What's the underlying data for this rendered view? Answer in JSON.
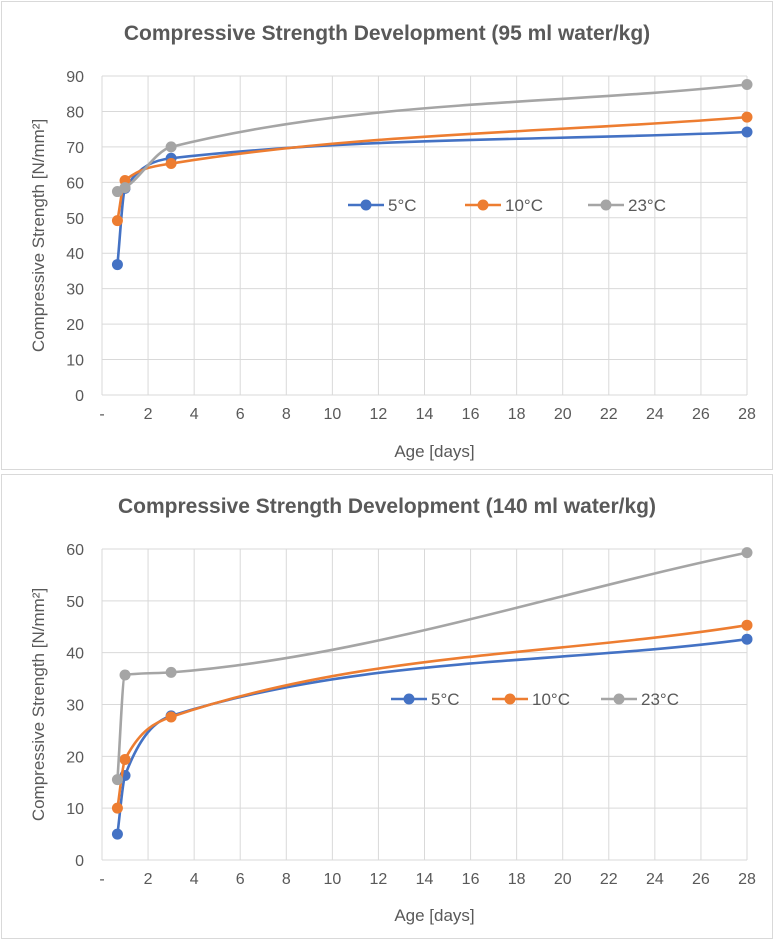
{
  "chart_data": [
    {
      "type": "line",
      "title": "Compressive Strength Development (95 ml water/kg)",
      "xlabel": "Age [days]",
      "ylabel": "Compressive Strength [N/mm²]",
      "xlim": [
        0,
        28
      ],
      "ylim": [
        0,
        90
      ],
      "x_ticks": [
        "-",
        "2",
        "4",
        "6",
        "8",
        "10",
        "12",
        "14",
        "16",
        "18",
        "20",
        "22",
        "24",
        "26",
        "28"
      ],
      "y_ticks": [
        "0",
        "10",
        "20",
        "30",
        "40",
        "50",
        "60",
        "70",
        "80",
        "90"
      ],
      "grid": true,
      "legend_position": "center-right",
      "smooth": true,
      "series": [
        {
          "name": "5°C",
          "color": "#4472C4",
          "x": [
            0.67,
            1,
            3,
            28
          ],
          "y": [
            36.8,
            58.3,
            66.8,
            74.2
          ]
        },
        {
          "name": "10°C",
          "color": "#ED7D31",
          "x": [
            0.67,
            1,
            3,
            28
          ],
          "y": [
            49.2,
            60.5,
            65.3,
            78.4
          ]
        },
        {
          "name": "23°C",
          "color": "#A5A5A5",
          "x": [
            0.67,
            1,
            3,
            28
          ],
          "y": [
            57.4,
            58.5,
            70.0,
            87.6
          ]
        }
      ]
    },
    {
      "type": "line",
      "title": "Compressive Strength Development (140 ml water/kg)",
      "xlabel": "Age [days]",
      "ylabel": "Compressive Strength [N/mm²]",
      "xlim": [
        0,
        28
      ],
      "ylim": [
        0,
        60
      ],
      "x_ticks": [
        "-",
        "2",
        "4",
        "6",
        "8",
        "10",
        "12",
        "14",
        "16",
        "18",
        "20",
        "22",
        "24",
        "26",
        "28"
      ],
      "y_ticks": [
        "0",
        "10",
        "20",
        "30",
        "40",
        "50",
        "60"
      ],
      "grid": true,
      "legend_position": "center-right",
      "smooth": true,
      "series": [
        {
          "name": "5°C",
          "color": "#4472C4",
          "x": [
            0.67,
            1,
            3,
            28
          ],
          "y": [
            5.0,
            16.3,
            27.8,
            42.6
          ]
        },
        {
          "name": "10°C",
          "color": "#ED7D31",
          "x": [
            0.67,
            1,
            3,
            28
          ],
          "y": [
            10.0,
            19.4,
            27.6,
            45.3
          ]
        },
        {
          "name": "23°C",
          "color": "#A5A5A5",
          "x": [
            0.67,
            1,
            3,
            28
          ],
          "y": [
            15.5,
            35.7,
            36.2,
            59.3
          ]
        }
      ]
    }
  ]
}
